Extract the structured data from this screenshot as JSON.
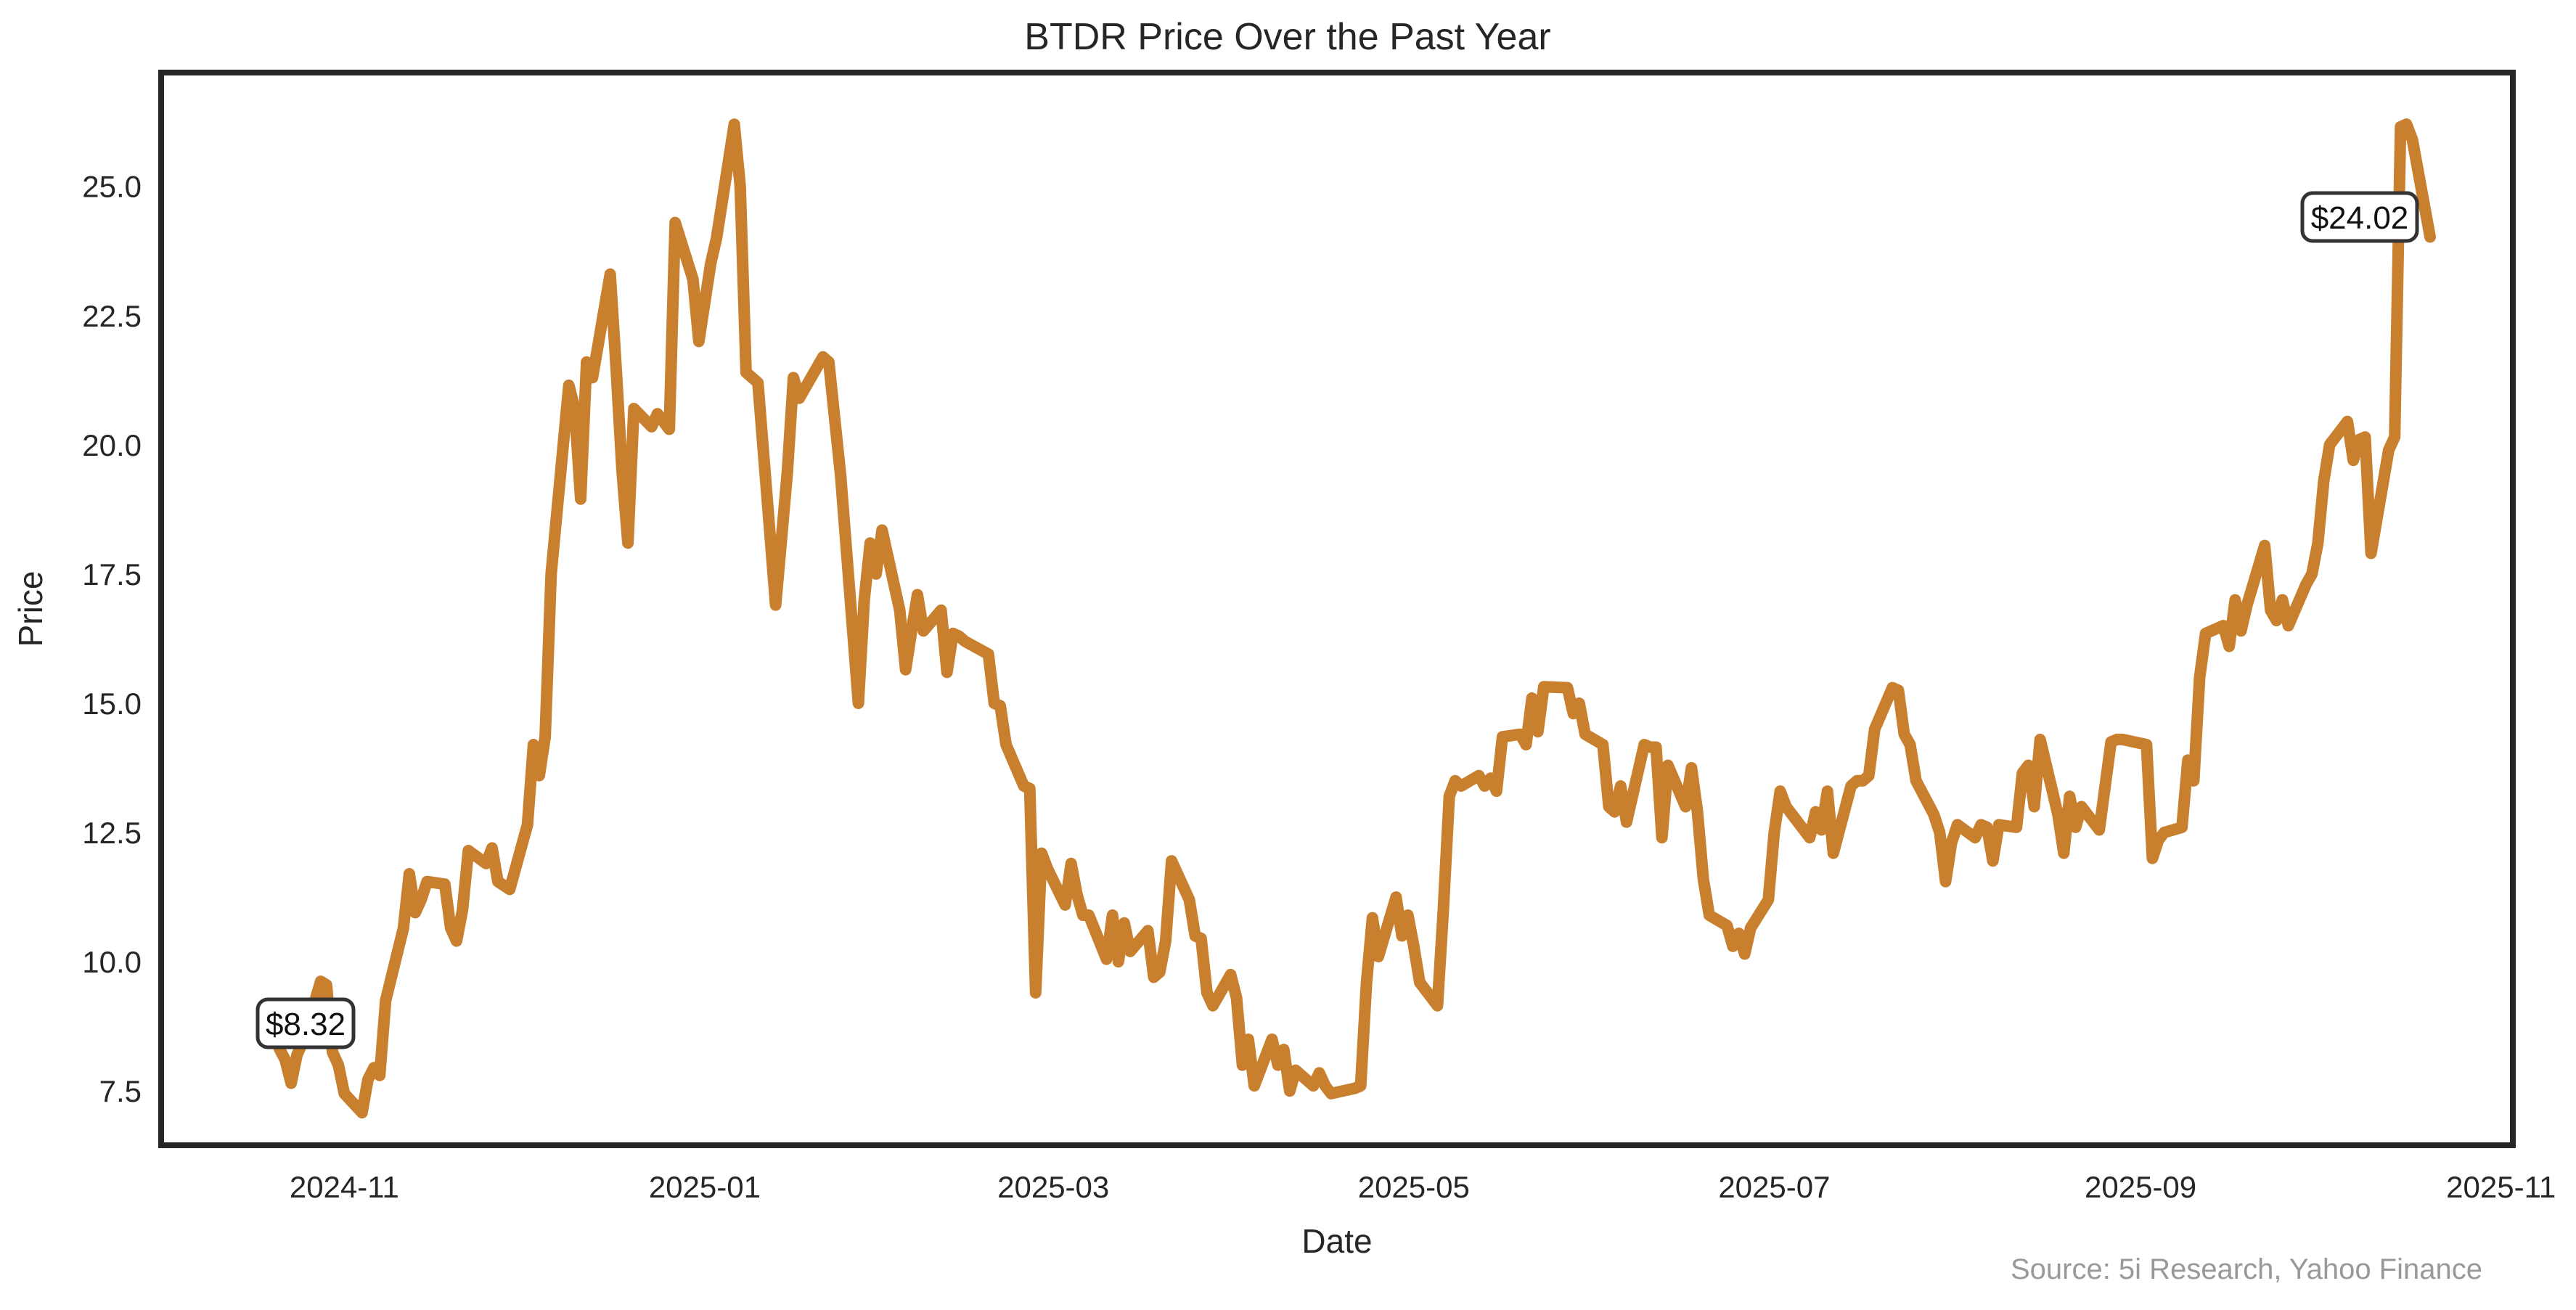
{
  "title": "BTDR Price Over the Past Year",
  "source_credit": "Source: 5i Research, Yahoo Finance",
  "colors": {
    "line": "#C87F2E",
    "spine": "#262626",
    "text": "#262626",
    "muted": "#999999"
  },
  "annotations": {
    "start": {
      "label": "$8.32",
      "date": "2024-10-21",
      "value": 8.32
    },
    "end": {
      "label": "$24.02",
      "date": "2025-10-20",
      "value": 24.02
    }
  },
  "chart_data": {
    "type": "line",
    "title": "BTDR Price Over the Past Year",
    "xlabel": "Date",
    "ylabel": "Price",
    "grid": false,
    "legend": "none",
    "line_color": "#C87F2E",
    "x_axis": {
      "min": "2024-10-01",
      "max": "2025-11-03",
      "ticks": [
        {
          "label": "2024-11",
          "date": "2024-11-01"
        },
        {
          "label": "2025-01",
          "date": "2025-01-01"
        },
        {
          "label": "2025-03",
          "date": "2025-03-01"
        },
        {
          "label": "2025-05",
          "date": "2025-05-01"
        },
        {
          "label": "2025-07",
          "date": "2025-07-01"
        },
        {
          "label": "2025-09",
          "date": "2025-09-01"
        },
        {
          "label": "2025-11",
          "date": "2025-11-01"
        }
      ]
    },
    "y_axis": {
      "min": 6.45,
      "max": 27.2,
      "ticks": [
        {
          "label": "7.5",
          "value": 7.5
        },
        {
          "label": "10.0",
          "value": 10.0
        },
        {
          "label": "12.5",
          "value": 12.5
        },
        {
          "label": "15.0",
          "value": 15.0
        },
        {
          "label": "17.5",
          "value": 17.5
        },
        {
          "label": "20.0",
          "value": 20.0
        },
        {
          "label": "22.5",
          "value": 22.5
        },
        {
          "label": "25.0",
          "value": 25.0
        }
      ]
    },
    "series": [
      {
        "name": "BTDR",
        "points": [
          [
            "2024-10-21",
            8.32
          ],
          [
            "2024-10-22",
            8.1
          ],
          [
            "2024-10-23",
            7.65
          ],
          [
            "2024-10-24",
            8.2
          ],
          [
            "2024-10-25",
            8.45
          ],
          [
            "2024-10-28",
            9.62
          ],
          [
            "2024-10-29",
            9.55
          ],
          [
            "2024-10-30",
            8.25
          ],
          [
            "2024-10-31",
            8.0
          ],
          [
            "2024-11-01",
            7.45
          ],
          [
            "2024-11-04",
            7.08
          ],
          [
            "2024-11-05",
            7.72
          ],
          [
            "2024-11-06",
            7.95
          ],
          [
            "2024-11-07",
            7.8
          ],
          [
            "2024-11-08",
            9.25
          ],
          [
            "2024-11-11",
            10.65
          ],
          [
            "2024-11-12",
            11.7
          ],
          [
            "2024-11-13",
            10.95
          ],
          [
            "2024-11-14",
            11.2
          ],
          [
            "2024-11-15",
            11.55
          ],
          [
            "2024-11-18",
            11.5
          ],
          [
            "2024-11-19",
            10.65
          ],
          [
            "2024-11-20",
            10.4
          ],
          [
            "2024-11-21",
            11.0
          ],
          [
            "2024-11-22",
            12.15
          ],
          [
            "2024-11-25",
            11.9
          ],
          [
            "2024-11-26",
            12.2
          ],
          [
            "2024-11-27",
            11.55
          ],
          [
            "2024-11-29",
            11.4
          ],
          [
            "2024-12-02",
            12.65
          ],
          [
            "2024-12-03",
            14.2
          ],
          [
            "2024-12-04",
            13.6
          ],
          [
            "2024-12-05",
            14.35
          ],
          [
            "2024-12-06",
            17.5
          ],
          [
            "2024-12-09",
            21.15
          ],
          [
            "2024-12-10",
            20.7
          ],
          [
            "2024-12-11",
            18.95
          ],
          [
            "2024-12-12",
            21.6
          ],
          [
            "2024-12-13",
            21.3
          ],
          [
            "2024-12-16",
            23.3
          ],
          [
            "2024-12-17",
            21.5
          ],
          [
            "2024-12-18",
            19.5
          ],
          [
            "2024-12-19",
            18.1
          ],
          [
            "2024-12-20",
            20.7
          ],
          [
            "2024-12-23",
            20.35
          ],
          [
            "2024-12-24",
            20.6
          ],
          [
            "2024-12-26",
            20.3
          ],
          [
            "2024-12-27",
            24.3
          ],
          [
            "2024-12-30",
            23.2
          ],
          [
            "2024-12-31",
            22.0
          ],
          [
            "2025-01-02",
            23.5
          ],
          [
            "2025-01-03",
            24.0
          ],
          [
            "2025-01-06",
            26.2
          ],
          [
            "2025-01-07",
            25.0
          ],
          [
            "2025-01-08",
            21.4
          ],
          [
            "2025-01-09",
            21.3
          ],
          [
            "2025-01-10",
            21.2
          ],
          [
            "2025-01-13",
            16.9
          ],
          [
            "2025-01-14",
            18.2
          ],
          [
            "2025-01-15",
            19.5
          ],
          [
            "2025-01-16",
            21.3
          ],
          [
            "2025-01-17",
            20.9
          ],
          [
            "2025-01-21",
            21.7
          ],
          [
            "2025-01-22",
            21.6
          ],
          [
            "2025-01-23",
            20.5
          ],
          [
            "2025-01-24",
            19.4
          ],
          [
            "2025-01-27",
            15.0
          ],
          [
            "2025-01-28",
            17.0
          ],
          [
            "2025-01-29",
            18.1
          ],
          [
            "2025-01-30",
            17.5
          ],
          [
            "2025-01-31",
            18.35
          ],
          [
            "2025-02-03",
            16.8
          ],
          [
            "2025-02-04",
            15.65
          ],
          [
            "2025-02-05",
            16.4
          ],
          [
            "2025-02-06",
            17.1
          ],
          [
            "2025-02-07",
            16.4
          ],
          [
            "2025-02-10",
            16.8
          ],
          [
            "2025-02-11",
            15.6
          ],
          [
            "2025-02-12",
            16.35
          ],
          [
            "2025-02-13",
            16.3
          ],
          [
            "2025-02-14",
            16.2
          ],
          [
            "2025-02-18",
            15.95
          ],
          [
            "2025-02-19",
            15.0
          ],
          [
            "2025-02-20",
            14.95
          ],
          [
            "2025-02-21",
            14.2
          ],
          [
            "2025-02-24",
            13.4
          ],
          [
            "2025-02-25",
            13.35
          ],
          [
            "2025-02-26",
            9.4
          ],
          [
            "2025-02-27",
            12.1
          ],
          [
            "2025-02-28",
            11.8
          ],
          [
            "2025-03-03",
            11.1
          ],
          [
            "2025-03-04",
            11.9
          ],
          [
            "2025-03-05",
            11.3
          ],
          [
            "2025-03-06",
            10.9
          ],
          [
            "2025-03-07",
            10.9
          ],
          [
            "2025-03-10",
            10.05
          ],
          [
            "2025-03-11",
            10.9
          ],
          [
            "2025-03-12",
            10.0
          ],
          [
            "2025-03-13",
            10.75
          ],
          [
            "2025-03-14",
            10.2
          ],
          [
            "2025-03-17",
            10.6
          ],
          [
            "2025-03-18",
            9.7
          ],
          [
            "2025-03-19",
            9.8
          ],
          [
            "2025-03-20",
            10.4
          ],
          [
            "2025-03-21",
            11.95
          ],
          [
            "2025-03-24",
            11.2
          ],
          [
            "2025-03-25",
            10.5
          ],
          [
            "2025-03-26",
            10.45
          ],
          [
            "2025-03-27",
            9.4
          ],
          [
            "2025-03-28",
            9.15
          ],
          [
            "2025-03-31",
            9.75
          ],
          [
            "2025-04-01",
            9.3
          ],
          [
            "2025-04-02",
            8.0
          ],
          [
            "2025-04-03",
            8.5
          ],
          [
            "2025-04-04",
            7.6
          ],
          [
            "2025-04-07",
            8.5
          ],
          [
            "2025-04-08",
            8.0
          ],
          [
            "2025-04-09",
            8.3
          ],
          [
            "2025-04-10",
            7.5
          ],
          [
            "2025-04-11",
            7.9
          ],
          [
            "2025-04-14",
            7.6
          ],
          [
            "2025-04-15",
            7.85
          ],
          [
            "2025-04-16",
            7.6
          ],
          [
            "2025-04-17",
            7.45
          ],
          [
            "2025-04-21",
            7.55
          ],
          [
            "2025-04-22",
            7.6
          ],
          [
            "2025-04-23",
            9.6
          ],
          [
            "2025-04-24",
            10.85
          ],
          [
            "2025-04-25",
            10.1
          ],
          [
            "2025-04-28",
            11.25
          ],
          [
            "2025-04-29",
            10.5
          ],
          [
            "2025-04-30",
            10.9
          ],
          [
            "2025-05-01",
            10.3
          ],
          [
            "2025-05-02",
            9.6
          ],
          [
            "2025-05-05",
            9.15
          ],
          [
            "2025-05-06",
            11.0
          ],
          [
            "2025-05-07",
            13.2
          ],
          [
            "2025-05-08",
            13.5
          ],
          [
            "2025-05-09",
            13.4
          ],
          [
            "2025-05-12",
            13.6
          ],
          [
            "2025-05-13",
            13.4
          ],
          [
            "2025-05-14",
            13.55
          ],
          [
            "2025-05-15",
            13.3
          ],
          [
            "2025-05-16",
            14.35
          ],
          [
            "2025-05-19",
            14.4
          ],
          [
            "2025-05-20",
            14.2
          ],
          [
            "2025-05-21",
            15.1
          ],
          [
            "2025-05-22",
            14.45
          ],
          [
            "2025-05-23",
            15.32
          ],
          [
            "2025-05-27",
            15.3
          ],
          [
            "2025-05-28",
            14.8
          ],
          [
            "2025-05-29",
            15.0
          ],
          [
            "2025-05-30",
            14.4
          ],
          [
            "2025-06-02",
            14.2
          ],
          [
            "2025-06-03",
            13.0
          ],
          [
            "2025-06-04",
            12.9
          ],
          [
            "2025-06-05",
            13.4
          ],
          [
            "2025-06-06",
            12.7
          ],
          [
            "2025-06-09",
            14.2
          ],
          [
            "2025-06-10",
            14.15
          ],
          [
            "2025-06-11",
            14.15
          ],
          [
            "2025-06-12",
            12.4
          ],
          [
            "2025-06-13",
            13.8
          ],
          [
            "2025-06-16",
            13.0
          ],
          [
            "2025-06-17",
            13.75
          ],
          [
            "2025-06-18",
            12.9
          ],
          [
            "2025-06-19",
            11.6
          ],
          [
            "2025-06-20",
            10.9
          ],
          [
            "2025-06-23",
            10.7
          ],
          [
            "2025-06-24",
            10.3
          ],
          [
            "2025-06-25",
            10.55
          ],
          [
            "2025-06-26",
            10.15
          ],
          [
            "2025-06-27",
            10.65
          ],
          [
            "2025-06-30",
            11.2
          ],
          [
            "2025-07-01",
            12.5
          ],
          [
            "2025-07-02",
            13.3
          ],
          [
            "2025-07-03",
            13.0
          ],
          [
            "2025-07-07",
            12.4
          ],
          [
            "2025-07-08",
            12.9
          ],
          [
            "2025-07-09",
            12.55
          ],
          [
            "2025-07-10",
            13.3
          ],
          [
            "2025-07-11",
            12.1
          ],
          [
            "2025-07-14",
            13.4
          ],
          [
            "2025-07-15",
            13.5
          ],
          [
            "2025-07-16",
            13.5
          ],
          [
            "2025-07-17",
            13.6
          ],
          [
            "2025-07-18",
            14.5
          ],
          [
            "2025-07-21",
            15.3
          ],
          [
            "2025-07-22",
            15.25
          ],
          [
            "2025-07-23",
            14.4
          ],
          [
            "2025-07-24",
            14.2
          ],
          [
            "2025-07-25",
            13.5
          ],
          [
            "2025-07-28",
            12.85
          ],
          [
            "2025-07-29",
            12.5
          ],
          [
            "2025-07-30",
            11.55
          ],
          [
            "2025-07-31",
            12.3
          ],
          [
            "2025-08-01",
            12.65
          ],
          [
            "2025-08-04",
            12.4
          ],
          [
            "2025-08-05",
            12.65
          ],
          [
            "2025-08-06",
            12.6
          ],
          [
            "2025-08-07",
            11.95
          ],
          [
            "2025-08-08",
            12.65
          ],
          [
            "2025-08-11",
            12.6
          ],
          [
            "2025-08-12",
            13.65
          ],
          [
            "2025-08-13",
            13.8
          ],
          [
            "2025-08-14",
            13.0
          ],
          [
            "2025-08-15",
            14.3
          ],
          [
            "2025-08-18",
            12.85
          ],
          [
            "2025-08-19",
            12.1
          ],
          [
            "2025-08-20",
            13.2
          ],
          [
            "2025-08-21",
            12.6
          ],
          [
            "2025-08-22",
            13.0
          ],
          [
            "2025-08-25",
            12.55
          ],
          [
            "2025-08-26",
            13.4
          ],
          [
            "2025-08-27",
            14.25
          ],
          [
            "2025-08-28",
            14.3
          ],
          [
            "2025-08-29",
            14.3
          ],
          [
            "2025-09-02",
            14.2
          ],
          [
            "2025-09-03",
            12.0
          ],
          [
            "2025-09-04",
            12.35
          ],
          [
            "2025-09-05",
            12.5
          ],
          [
            "2025-09-08",
            12.6
          ],
          [
            "2025-09-09",
            13.9
          ],
          [
            "2025-09-10",
            13.5
          ],
          [
            "2025-09-11",
            15.5
          ],
          [
            "2025-09-12",
            16.35
          ],
          [
            "2025-09-15",
            16.5
          ],
          [
            "2025-09-16",
            16.1
          ],
          [
            "2025-09-17",
            17.0
          ],
          [
            "2025-09-18",
            16.4
          ],
          [
            "2025-09-19",
            16.9
          ],
          [
            "2025-09-22",
            18.05
          ],
          [
            "2025-09-23",
            16.8
          ],
          [
            "2025-09-24",
            16.6
          ],
          [
            "2025-09-25",
            17.0
          ],
          [
            "2025-09-26",
            16.5
          ],
          [
            "2025-09-29",
            17.3
          ],
          [
            "2025-09-30",
            17.5
          ],
          [
            "2025-10-01",
            18.1
          ],
          [
            "2025-10-02",
            19.3
          ],
          [
            "2025-10-03",
            20.0
          ],
          [
            "2025-10-06",
            20.45
          ],
          [
            "2025-10-07",
            19.7
          ],
          [
            "2025-10-08",
            20.1
          ],
          [
            "2025-10-09",
            20.15
          ],
          [
            "2025-10-10",
            17.9
          ],
          [
            "2025-10-13",
            19.9
          ],
          [
            "2025-10-14",
            20.15
          ],
          [
            "2025-10-15",
            26.15
          ],
          [
            "2025-10-16",
            26.2
          ],
          [
            "2025-10-17",
            25.9
          ],
          [
            "2025-10-20",
            24.02
          ]
        ]
      }
    ]
  }
}
